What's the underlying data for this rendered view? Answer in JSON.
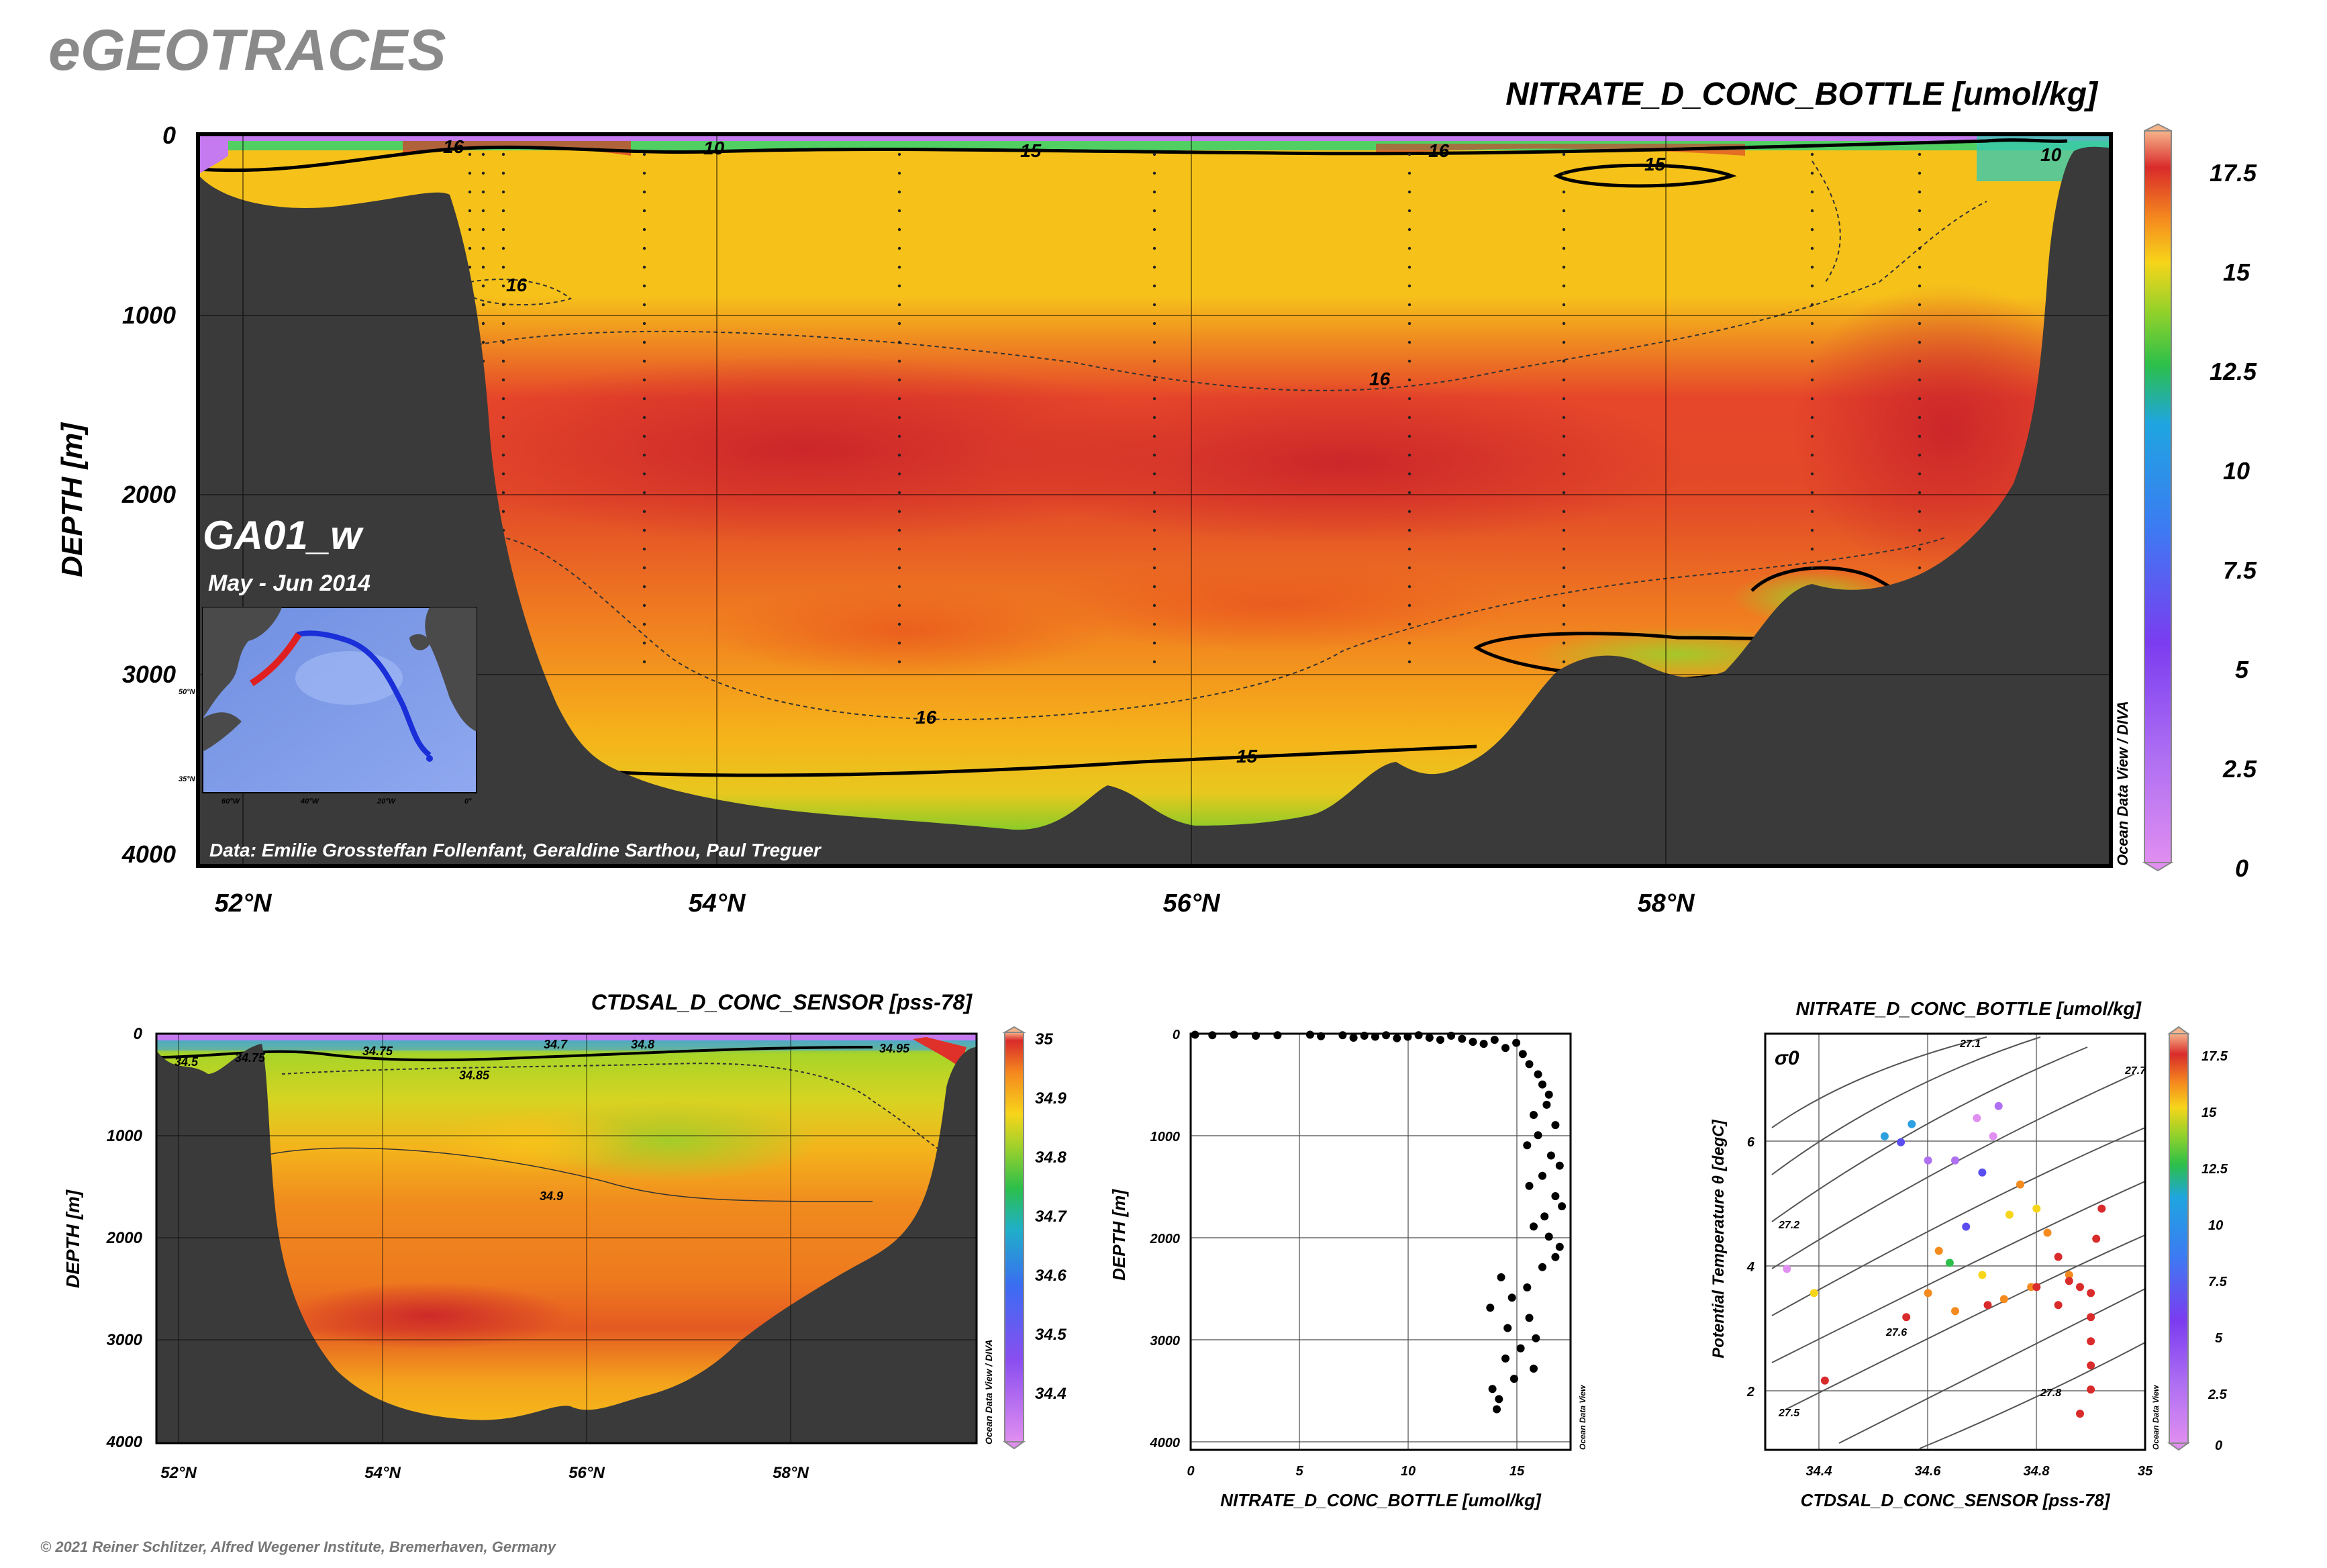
{
  "brand": "eGEOTRACES",
  "copyright": "© 2021 Reiner Schlitzer, Alfred Wegener Institute, Bremerhaven, Germany",
  "watermark_odv_diva": "Ocean Data View / DIVA",
  "watermark_odv": "Ocean Data View",
  "main_section": {
    "title": "NITRATE_D_CONC_BOTTLE [umol/kg]",
    "section_name": "GA01_w",
    "period": "May - Jun 2014",
    "credit": "Data: Emilie Grossteffan Follenfant, Geraldine Sarthou, Paul Treguer",
    "ylabel": "DEPTH [m]",
    "y_ticks": [
      "0",
      "1000",
      "2000",
      "3000",
      "4000"
    ],
    "x_ticks": [
      "52°N",
      "54°N",
      "56°N",
      "58°N"
    ],
    "contour_labels": [
      "16",
      "10",
      "15",
      "16",
      "15",
      "10",
      "16",
      "16",
      "16",
      "15"
    ],
    "colorbar_ticks": [
      "17.5",
      "15",
      "12.5",
      "10",
      "7.5",
      "5",
      "2.5",
      "0"
    ],
    "map_labels": {
      "lat_top": "50°N",
      "lat_bottom": "35°N",
      "lon": [
        "60°W",
        "40°W",
        "20°W",
        "0°"
      ]
    }
  },
  "salinity_section": {
    "title": "CTDSAL_D_CONC_SENSOR [pss-78]",
    "ylabel": "DEPTH [m]",
    "y_ticks": [
      "0",
      "1000",
      "2000",
      "3000",
      "4000"
    ],
    "x_ticks": [
      "52°N",
      "54°N",
      "56°N",
      "58°N"
    ],
    "contour_labels": [
      "34.75",
      "34.7",
      "34.8",
      "34.85",
      "34.9",
      "34.75",
      "34.5",
      "34.95"
    ],
    "colorbar_ticks": [
      "35",
      "34.9",
      "34.8",
      "34.7",
      "34.6",
      "34.5",
      "34.4"
    ]
  },
  "chart_data": [
    {
      "type": "heatmap",
      "title": "NITRATE_D_CONC_BOTTLE [umol/kg]",
      "ylabel": "DEPTH [m]",
      "x_ticks": [
        "52°N",
        "54°N",
        "56°N",
        "58°N"
      ],
      "xlim": [
        51.8,
        59.8
      ],
      "ylim": [
        4000,
        0
      ],
      "colorbar_range": [
        0,
        18.5
      ],
      "colorbar_ticks": [
        0,
        2.5,
        5,
        7.5,
        10,
        12.5,
        15,
        17.5
      ],
      "contours": [
        10,
        15,
        16
      ]
    },
    {
      "type": "heatmap",
      "title": "CTDSAL_D_CONC_SENSOR [pss-78]",
      "ylabel": "DEPTH [m]",
      "xlim": [
        51.8,
        59.8
      ],
      "ylim": [
        4000,
        0
      ],
      "colorbar_range": [
        34.3,
        35.0
      ],
      "colorbar_ticks": [
        34.4,
        34.5,
        34.6,
        34.7,
        34.8,
        34.9,
        35
      ]
    },
    {
      "type": "scatter",
      "xlabel": "NITRATE_D_CONC_BOTTLE [umol/kg]",
      "ylabel": "DEPTH [m]",
      "xlim": [
        0,
        17.5
      ],
      "ylim": [
        4100,
        0
      ],
      "x_ticks": [
        "0",
        "5",
        "10",
        "15"
      ],
      "y_ticks": [
        "0",
        "1000",
        "2000",
        "3000",
        "4000"
      ],
      "points": [
        [
          0.2,
          10
        ],
        [
          1,
          15
        ],
        [
          2,
          10
        ],
        [
          3,
          20
        ],
        [
          4,
          15
        ],
        [
          5.5,
          10
        ],
        [
          6,
          25
        ],
        [
          7,
          15
        ],
        [
          7.5,
          40
        ],
        [
          8,
          20
        ],
        [
          8.5,
          30
        ],
        [
          9,
          15
        ],
        [
          9.5,
          45
        ],
        [
          10,
          30
        ],
        [
          10.5,
          15
        ],
        [
          11,
          40
        ],
        [
          11.5,
          60
        ],
        [
          12,
          20
        ],
        [
          12.5,
          50
        ],
        [
          13,
          80
        ],
        [
          13.5,
          100
        ],
        [
          14,
          60
        ],
        [
          14.5,
          140
        ],
        [
          15,
          90
        ],
        [
          15.3,
          200
        ],
        [
          15.6,
          300
        ],
        [
          16,
          400
        ],
        [
          16.2,
          500
        ],
        [
          16.5,
          600
        ],
        [
          16.4,
          700
        ],
        [
          15.8,
          800
        ],
        [
          16.8,
          900
        ],
        [
          16,
          1000
        ],
        [
          15.5,
          1100
        ],
        [
          16.6,
          1200
        ],
        [
          17,
          1300
        ],
        [
          16.2,
          1400
        ],
        [
          15.6,
          1500
        ],
        [
          16.8,
          1600
        ],
        [
          17.1,
          1700
        ],
        [
          16.3,
          1800
        ],
        [
          15.8,
          1900
        ],
        [
          16.5,
          2000
        ],
        [
          17,
          2100
        ],
        [
          16.8,
          2200
        ],
        [
          16.2,
          2300
        ],
        [
          14.3,
          2400
        ],
        [
          15.5,
          2500
        ],
        [
          14.8,
          2600
        ],
        [
          13.8,
          2700
        ],
        [
          15.6,
          2800
        ],
        [
          14.6,
          2900
        ],
        [
          15.9,
          3000
        ],
        [
          15.2,
          3100
        ],
        [
          14.5,
          3200
        ],
        [
          15.8,
          3300
        ],
        [
          14.9,
          3400
        ],
        [
          13.9,
          3500
        ],
        [
          14.2,
          3600
        ],
        [
          14.1,
          3700
        ]
      ]
    },
    {
      "type": "scatter",
      "title": "NITRATE_D_CONC_BOTTLE [umol/kg]",
      "xlabel": "CTDSAL_D_CONC_SENSOR [pss-78]",
      "ylabel": "Potential Temperature θ [degC]",
      "xlim": [
        34.3,
        35.0
      ],
      "ylim": [
        1,
        7.9
      ],
      "x_ticks": [
        "34.4",
        "34.6",
        "34.8",
        "35"
      ],
      "y_ticks": [
        "2",
        "4",
        "6"
      ],
      "isopycnals": [
        "27.1",
        "27.2",
        "27.5",
        "27.6",
        "27.7",
        "27.8"
      ],
      "sigma_label": "σ0",
      "colorbar_ticks": [
        "17.5",
        "15",
        "12.5",
        "10",
        "7.5",
        "5",
        "2.5",
        "0"
      ],
      "points": [
        [
          34.34,
          4.0,
          1
        ],
        [
          34.39,
          3.6,
          13
        ],
        [
          34.41,
          2.15,
          16
        ],
        [
          34.52,
          6.2,
          9
        ],
        [
          34.55,
          6.1,
          6
        ],
        [
          34.57,
          6.4,
          8
        ],
        [
          34.6,
          5.8,
          4
        ],
        [
          34.62,
          4.3,
          14
        ],
        [
          34.65,
          5.8,
          3
        ],
        [
          34.69,
          6.5,
          2
        ],
        [
          34.73,
          6.7,
          3
        ],
        [
          34.72,
          6.2,
          1
        ],
        [
          34.7,
          5.6,
          5
        ],
        [
          34.67,
          4.7,
          7
        ],
        [
          34.64,
          4.1,
          11
        ],
        [
          34.6,
          3.6,
          15
        ],
        [
          34.56,
          3.2,
          16
        ],
        [
          34.7,
          3.9,
          13
        ],
        [
          34.75,
          4.9,
          13
        ],
        [
          34.77,
          5.4,
          14
        ],
        [
          34.8,
          5.0,
          13
        ],
        [
          34.82,
          4.6,
          15
        ],
        [
          34.84,
          4.2,
          16
        ],
        [
          34.86,
          3.9,
          15
        ],
        [
          34.88,
          3.7,
          16
        ],
        [
          34.9,
          3.6,
          17
        ],
        [
          34.91,
          4.5,
          17
        ],
        [
          34.92,
          5.0,
          16
        ],
        [
          34.9,
          3.2,
          16
        ],
        [
          34.9,
          2.8,
          16
        ],
        [
          34.9,
          2.4,
          16
        ],
        [
          34.9,
          2.0,
          16
        ],
        [
          34.88,
          1.6,
          16
        ],
        [
          34.79,
          3.7,
          15
        ],
        [
          34.74,
          3.5,
          14
        ],
        [
          34.71,
          3.4,
          16
        ],
        [
          34.65,
          3.3,
          15
        ],
        [
          34.84,
          3.4,
          16
        ],
        [
          34.86,
          3.8,
          16
        ],
        [
          34.8,
          3.7,
          16
        ]
      ]
    }
  ]
}
